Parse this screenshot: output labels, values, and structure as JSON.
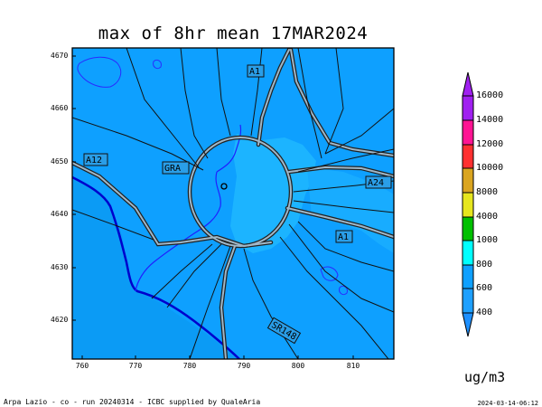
{
  "title": "max of 8hr mean 17MAR2024",
  "y_ticks": [
    "4670",
    "4660",
    "4650",
    "4640",
    "4630",
    "4620"
  ],
  "x_ticks": [
    "760",
    "770",
    "780",
    "790",
    "800",
    "810"
  ],
  "road_labels": {
    "a1_north": "A1",
    "a12": "A12",
    "gra": "GRA",
    "a24": "A24",
    "a1_east": "A1",
    "ss148": "SR148"
  },
  "colorbar": {
    "labels": [
      "16000",
      "14000",
      "12000",
      "10000",
      "8000",
      "4000",
      "1000",
      "800",
      "600",
      "400"
    ],
    "colors": [
      "#a020f0",
      "#ff1493",
      "#ff3030",
      "#daa520",
      "#e6e61e",
      "#00c000",
      "#00ffff",
      "#1ea0ff"
    ]
  },
  "units": "ug/m3",
  "footer_left": "Arpa Lazio - co - run 20240314 - ICBC supplied by QualeAria",
  "footer_right": "2024-03-14-06:12",
  "colors": {
    "field_base": "#0ea0ff",
    "field_high": "#16b6ff",
    "sea": "#1e90ff",
    "coastline": "#0000cd",
    "river": "#2020ff",
    "roads": "#111111"
  }
}
